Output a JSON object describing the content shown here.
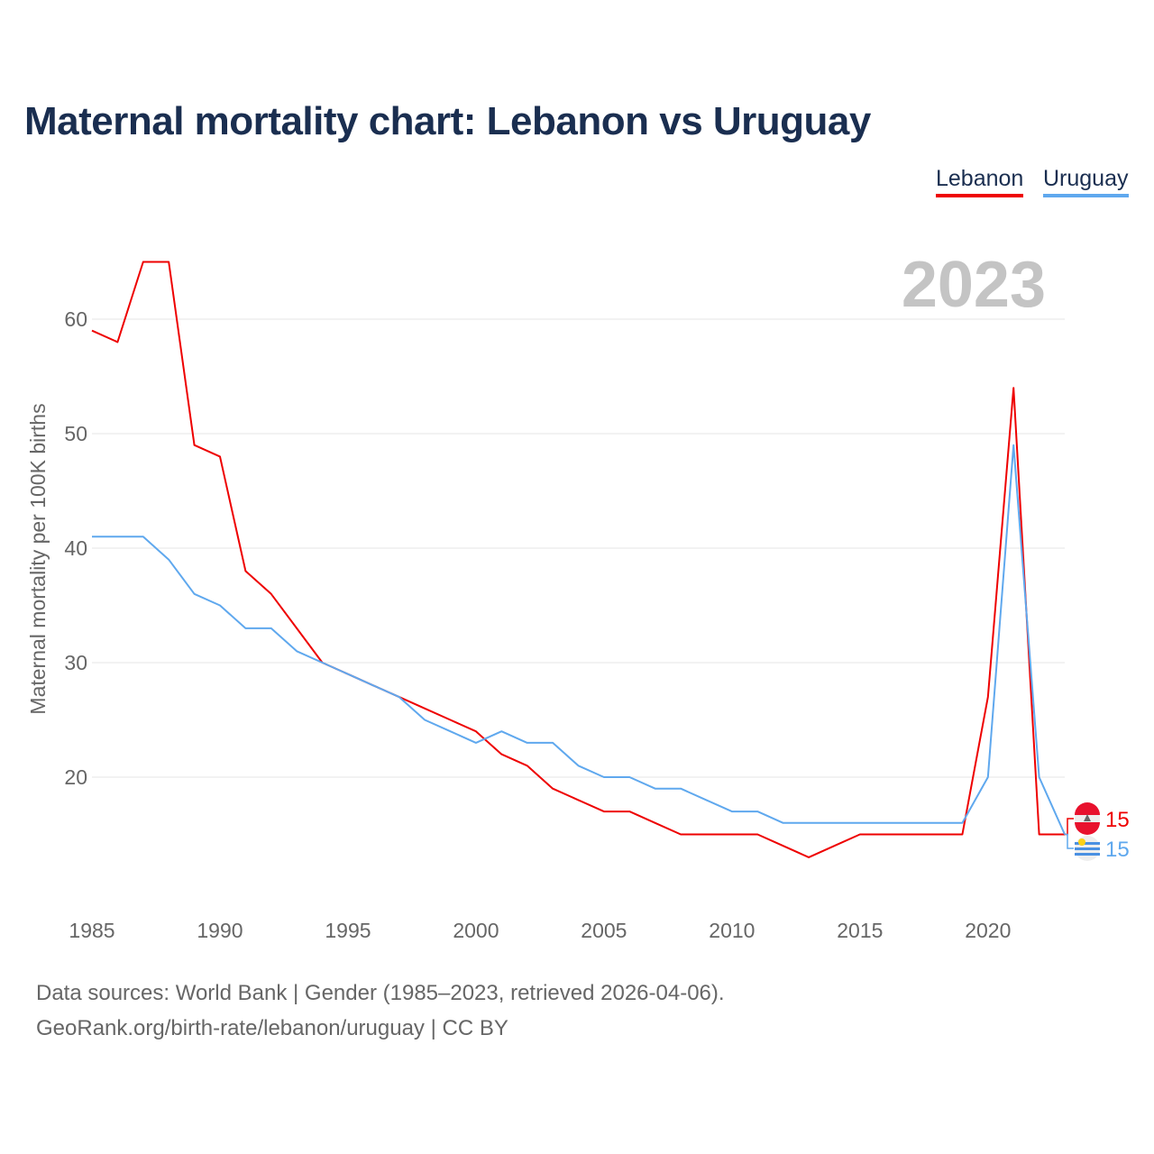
{
  "chart_data": {
    "type": "line",
    "title": "Maternal mortality chart: Lebanon vs Uruguay",
    "ylabel": "Maternal mortality per 100K births",
    "xlabel": "",
    "year_watermark": "2023",
    "xlim": [
      1985,
      2023
    ],
    "ylim": [
      10,
      65
    ],
    "x_ticks": [
      "1985",
      "1990",
      "1995",
      "2000",
      "2005",
      "2010",
      "2015",
      "2020"
    ],
    "y_ticks": [
      "20",
      "30",
      "40",
      "50",
      "60"
    ],
    "grid": true,
    "legend_placement": "top-right",
    "x": [
      1985,
      1986,
      1987,
      1988,
      1989,
      1990,
      1991,
      1992,
      1993,
      1994,
      1995,
      1996,
      1997,
      1998,
      1999,
      2000,
      2001,
      2002,
      2003,
      2004,
      2005,
      2006,
      2007,
      2008,
      2009,
      2010,
      2011,
      2012,
      2013,
      2014,
      2015,
      2016,
      2017,
      2018,
      2019,
      2020,
      2021,
      2022,
      2023
    ],
    "series": [
      {
        "name": "Lebanon",
        "color": "#ee0000",
        "end_label": "15",
        "values": [
          59,
          58,
          65,
          65,
          49,
          48,
          38,
          36,
          33,
          30,
          29,
          28,
          27,
          26,
          25,
          24,
          22,
          21,
          19,
          18,
          17,
          17,
          16,
          15,
          15,
          15,
          15,
          14,
          13,
          14,
          15,
          15,
          15,
          15,
          15,
          27,
          54,
          15,
          15
        ]
      },
      {
        "name": "Uruguay",
        "color": "#5fa8ee",
        "end_label": "15",
        "values": [
          41,
          41,
          41,
          39,
          36,
          35,
          33,
          33,
          31,
          30,
          29,
          28,
          27,
          25,
          24,
          23,
          24,
          23,
          23,
          21,
          20,
          20,
          19,
          19,
          18,
          17,
          17,
          16,
          16,
          16,
          16,
          16,
          16,
          16,
          16,
          20,
          49,
          20,
          15
        ]
      }
    ]
  },
  "footer": {
    "sources": "Data sources: World Bank | Gender (1985–2023, retrieved 2026-04-06).",
    "credit": "GeoRank.org/birth-rate/lebanon/uruguay | CC BY"
  }
}
